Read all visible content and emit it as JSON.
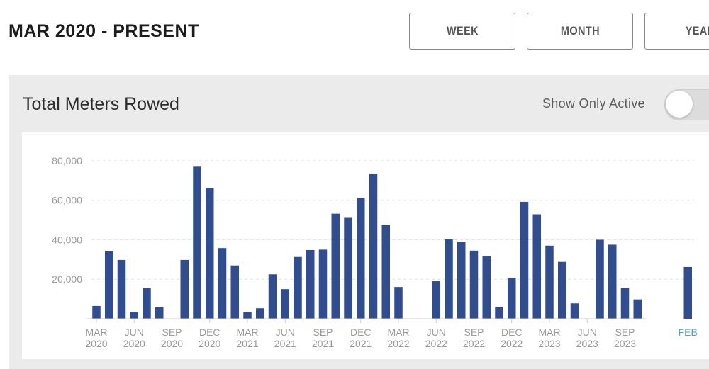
{
  "header": {
    "title": "MAR 2020 - PRESENT",
    "buttons": {
      "week": "WEEK",
      "month": "MONTH",
      "year": "YEAR"
    }
  },
  "panel": {
    "title": "Total Meters Rowed",
    "toggle_label": "Show Only Active",
    "toggle_on": false
  },
  "colors": {
    "bar": "#2f4d8f",
    "axis_text": "#9a9a9a",
    "highlight_label": "#4a9fd6",
    "grid": "#dedede"
  },
  "chart_data": {
    "type": "bar",
    "ylim": [
      0,
      85000
    ],
    "yticks": [
      20000,
      40000,
      60000,
      80000
    ],
    "ytick_labels": [
      "20,000",
      "40,000",
      "60,000",
      "80,000"
    ],
    "grid": true,
    "categories": [
      "Mar 2020",
      "Apr 2020",
      "May 2020",
      "Jun 2020",
      "Jul 2020",
      "Aug 2020",
      "Sep 2020",
      "Oct 2020",
      "Nov 2020",
      "Dec 2020",
      "Jan 2021",
      "Feb 2021",
      "Mar 2021",
      "Apr 2021",
      "May 2021",
      "Jun 2021",
      "Jul 2021",
      "Aug 2021",
      "Sep 2021",
      "Oct 2021",
      "Nov 2021",
      "Dec 2021",
      "Jan 2022",
      "Feb 2022",
      "Mar 2022",
      "Apr 2022",
      "May 2022",
      "Jun 2022",
      "Jul 2022",
      "Aug 2022",
      "Sep 2022",
      "Oct 2022",
      "Nov 2022",
      "Dec 2022",
      "Jan 2023",
      "Feb 2023",
      "Mar 2023",
      "Apr 2023",
      "May 2023",
      "Jun 2023",
      "Jul 2023",
      "Aug 2023",
      "Sep 2023",
      "Oct 2023",
      "Nov 2023",
      "Dec 2023",
      "Jan 2024",
      "Feb 2024"
    ],
    "values": [
      6500,
      34200,
      29800,
      3500,
      15500,
      5800,
      0,
      29800,
      77000,
      66200,
      35800,
      27000,
      3500,
      5300,
      22500,
      15000,
      31300,
      34800,
      35000,
      53200,
      51100,
      61100,
      73400,
      47600,
      16100,
      0,
      0,
      19000,
      40200,
      39000,
      34500,
      31700,
      6000,
      20600,
      59200,
      52900,
      37000,
      28800,
      7800,
      0,
      40000,
      37500,
      15500,
      9800,
      0,
      0,
      0,
      26200
    ],
    "xtick_labels": [
      {
        "month": "MAR",
        "year": "2020",
        "index": 0
      },
      {
        "month": "JUN",
        "year": "2020",
        "index": 3
      },
      {
        "month": "SEP",
        "year": "2020",
        "index": 6
      },
      {
        "month": "DEC",
        "year": "2020",
        "index": 9
      },
      {
        "month": "MAR",
        "year": "2021",
        "index": 12
      },
      {
        "month": "JUN",
        "year": "2021",
        "index": 15
      },
      {
        "month": "SEP",
        "year": "2021",
        "index": 18
      },
      {
        "month": "DEC",
        "year": "2021",
        "index": 21
      },
      {
        "month": "MAR",
        "year": "2022",
        "index": 24
      },
      {
        "month": "JUN",
        "year": "2022",
        "index": 27
      },
      {
        "month": "SEP",
        "year": "2022",
        "index": 30
      },
      {
        "month": "DEC",
        "year": "2022",
        "index": 33
      },
      {
        "month": "MAR",
        "year": "2023",
        "index": 36
      },
      {
        "month": "JUN",
        "year": "2023",
        "index": 39
      },
      {
        "month": "SEP",
        "year": "2023",
        "index": 42
      },
      {
        "month": "FEB",
        "year": "",
        "index": 47,
        "highlight": true
      }
    ]
  }
}
